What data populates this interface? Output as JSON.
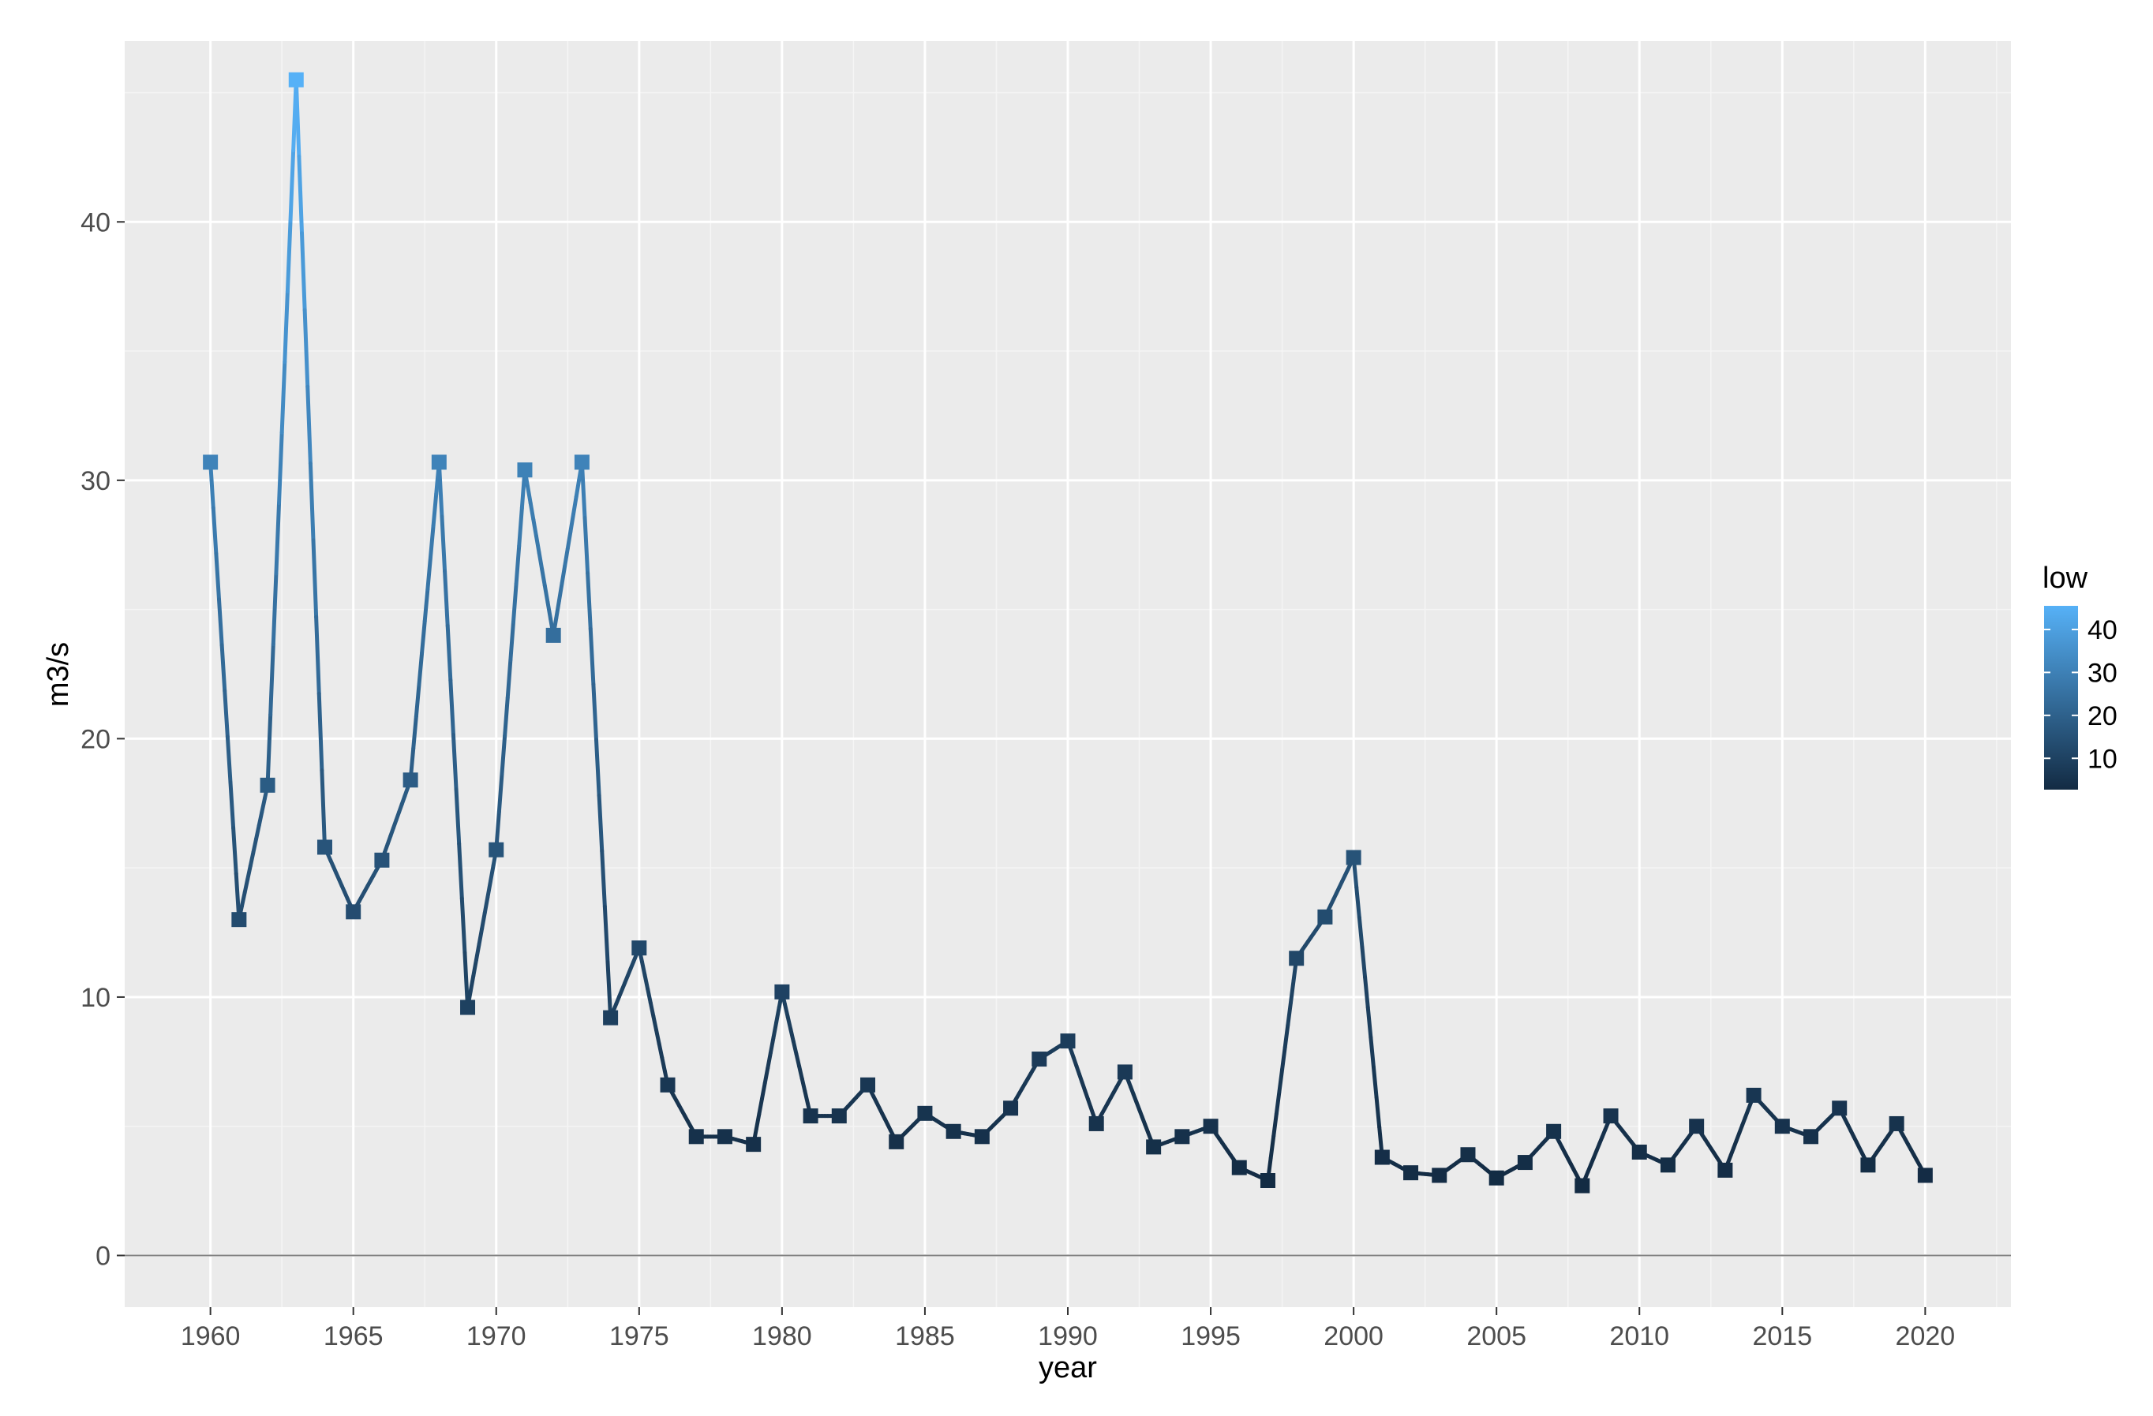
{
  "chart_data": {
    "type": "line",
    "title": "",
    "xlabel": "year",
    "ylabel": "m3/s",
    "xlim": [
      1957,
      2023
    ],
    "ylim": [
      -2,
      47
    ],
    "grid": true,
    "x_ticks": [
      1960,
      1965,
      1970,
      1975,
      1980,
      1985,
      1990,
      1995,
      2000,
      2005,
      2010,
      2015,
      2020
    ],
    "y_ticks": [
      0,
      10,
      20,
      30,
      40
    ],
    "hline": 0,
    "legend": {
      "title": "low",
      "placement": "right",
      "type": "colorbar",
      "labels": [
        10,
        20,
        30,
        40
      ],
      "range": [
        2.7,
        45.5
      ],
      "color_low": "#132b43",
      "color_high": "#56b1f7"
    },
    "series": [
      {
        "marker": "square",
        "x": [
          1960,
          1961,
          1962,
          1963,
          1964,
          1965,
          1966,
          1967,
          1968,
          1969,
          1970,
          1971,
          1972,
          1973,
          1974,
          1975,
          1976,
          1977,
          1978,
          1979,
          1980,
          1981,
          1982,
          1983,
          1984,
          1985,
          1986,
          1987,
          1988,
          1989,
          1990,
          1991,
          1992,
          1993,
          1994,
          1995,
          1996,
          1997,
          1998,
          1999,
          2000,
          2001,
          2002,
          2003,
          2004,
          2005,
          2006,
          2007,
          2008,
          2009,
          2010,
          2011,
          2012,
          2013,
          2014,
          2015,
          2016,
          2017,
          2018,
          2019,
          2020
        ],
        "y": [
          30.7,
          13.0,
          18.2,
          45.5,
          15.8,
          13.3,
          15.3,
          18.4,
          30.7,
          9.6,
          15.7,
          30.4,
          24.0,
          30.7,
          9.2,
          11.9,
          6.6,
          4.6,
          4.6,
          4.3,
          10.2,
          5.4,
          5.4,
          6.6,
          4.4,
          5.5,
          4.8,
          4.6,
          5.7,
          7.6,
          8.3,
          5.1,
          7.1,
          4.2,
          4.6,
          5.0,
          3.4,
          2.9,
          11.5,
          13.1,
          15.4,
          3.8,
          3.2,
          3.1,
          3.9,
          3.0,
          3.6,
          4.8,
          2.7,
          5.4,
          4.0,
          3.5,
          5.0,
          3.3,
          6.2,
          5.0,
          4.6,
          5.7,
          3.5,
          5.1,
          3.1
        ]
      }
    ]
  }
}
